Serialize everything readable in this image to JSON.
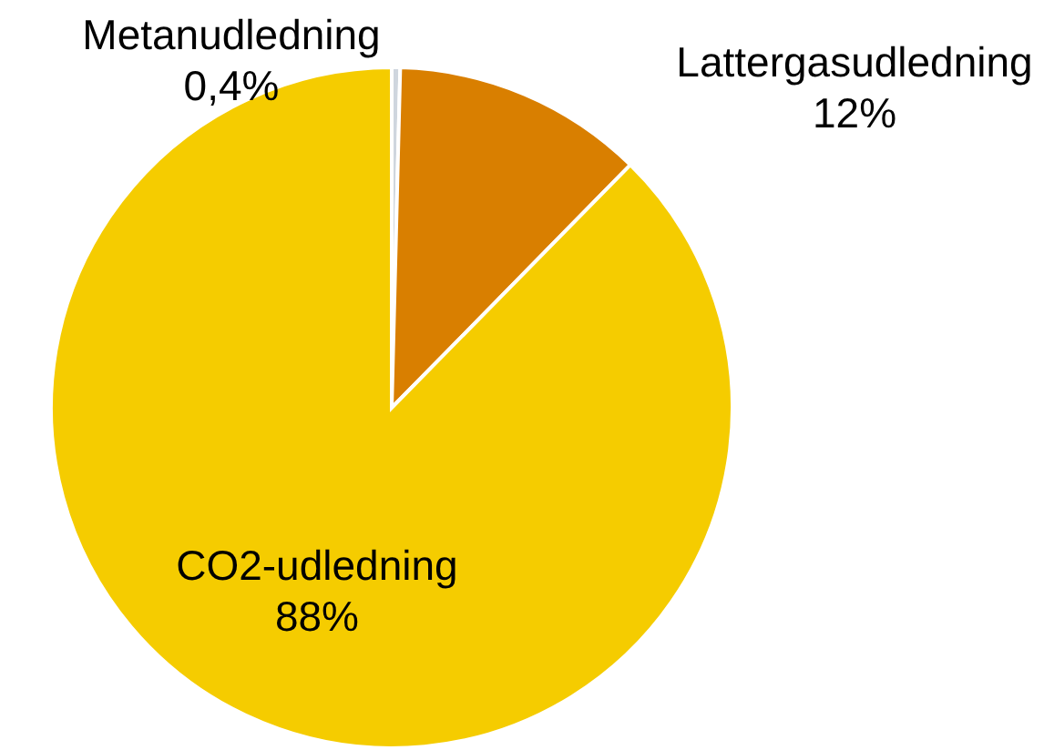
{
  "chart_data": {
    "type": "pie",
    "categories": [
      "Metanudledning",
      "Lattergasudledning",
      "CO2-udledning"
    ],
    "values": [
      0.4,
      12,
      88
    ],
    "colors": [
      "#cfd6de",
      "#d97f00",
      "#f5cc00"
    ],
    "value_labels": [
      "0,4%",
      "12%",
      "88%"
    ]
  }
}
